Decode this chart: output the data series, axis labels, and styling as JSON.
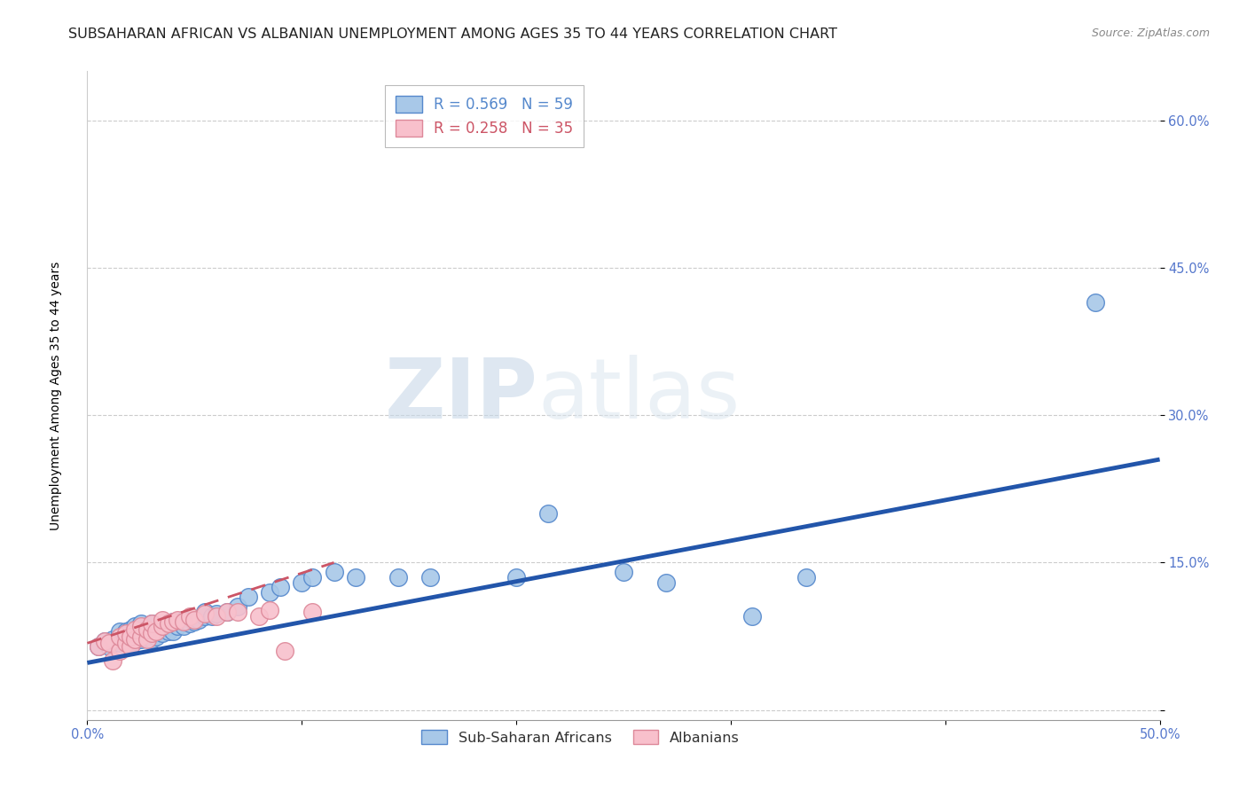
{
  "title": "SUBSAHARAN AFRICAN VS ALBANIAN UNEMPLOYMENT AMONG AGES 35 TO 44 YEARS CORRELATION CHART",
  "source": "Source: ZipAtlas.com",
  "ylabel": "Unemployment Among Ages 35 to 44 years",
  "xlim": [
    0.0,
    0.5
  ],
  "ylim": [
    -0.01,
    0.65
  ],
  "yticks": [
    0.0,
    0.15,
    0.3,
    0.45,
    0.6
  ],
  "ytick_labels": [
    "",
    "15.0%",
    "30.0%",
    "45.0%",
    "60.0%"
  ],
  "xtick_labels": [
    "0.0%",
    "",
    "",
    "",
    "",
    "50.0%"
  ],
  "xticks": [
    0.0,
    0.1,
    0.2,
    0.3,
    0.4,
    0.5
  ],
  "blue_color": "#a8c8e8",
  "blue_edge_color": "#5588cc",
  "blue_line_color": "#2255aa",
  "pink_color": "#f8c0cc",
  "pink_edge_color": "#dd8899",
  "pink_line_color": "#cc5566",
  "tick_color": "#5577cc",
  "watermark_zip": "ZIP",
  "watermark_atlas": "atlas",
  "title_fontsize": 11.5,
  "axis_label_fontsize": 10,
  "tick_label_fontsize": 10.5,
  "blue_scatter_x": [
    0.005,
    0.008,
    0.01,
    0.012,
    0.015,
    0.015,
    0.015,
    0.018,
    0.018,
    0.018,
    0.02,
    0.02,
    0.02,
    0.022,
    0.022,
    0.022,
    0.025,
    0.025,
    0.025,
    0.028,
    0.028,
    0.03,
    0.03,
    0.03,
    0.032,
    0.035,
    0.035,
    0.038,
    0.038,
    0.04,
    0.04,
    0.042,
    0.045,
    0.045,
    0.048,
    0.05,
    0.052,
    0.055,
    0.055,
    0.058,
    0.06,
    0.065,
    0.07,
    0.075,
    0.085,
    0.09,
    0.1,
    0.105,
    0.115,
    0.125,
    0.145,
    0.16,
    0.2,
    0.215,
    0.25,
    0.27,
    0.31,
    0.335,
    0.47
  ],
  "blue_scatter_y": [
    0.065,
    0.07,
    0.065,
    0.072,
    0.068,
    0.075,
    0.08,
    0.07,
    0.075,
    0.08,
    0.068,
    0.075,
    0.082,
    0.07,
    0.078,
    0.085,
    0.072,
    0.08,
    0.088,
    0.075,
    0.082,
    0.072,
    0.08,
    0.088,
    0.075,
    0.078,
    0.085,
    0.08,
    0.088,
    0.08,
    0.09,
    0.085,
    0.085,
    0.092,
    0.088,
    0.09,
    0.092,
    0.095,
    0.1,
    0.095,
    0.098,
    0.1,
    0.105,
    0.115,
    0.12,
    0.125,
    0.13,
    0.135,
    0.14,
    0.135,
    0.135,
    0.135,
    0.135,
    0.2,
    0.14,
    0.13,
    0.095,
    0.135,
    0.415
  ],
  "pink_scatter_x": [
    0.005,
    0.008,
    0.01,
    0.012,
    0.015,
    0.015,
    0.018,
    0.018,
    0.02,
    0.02,
    0.022,
    0.022,
    0.025,
    0.025,
    0.028,
    0.028,
    0.03,
    0.03,
    0.032,
    0.035,
    0.035,
    0.038,
    0.04,
    0.042,
    0.045,
    0.048,
    0.05,
    0.055,
    0.06,
    0.065,
    0.07,
    0.08,
    0.085,
    0.092,
    0.105
  ],
  "pink_scatter_y": [
    0.065,
    0.07,
    0.068,
    0.05,
    0.06,
    0.075,
    0.068,
    0.078,
    0.065,
    0.075,
    0.072,
    0.082,
    0.075,
    0.085,
    0.072,
    0.082,
    0.078,
    0.088,
    0.08,
    0.085,
    0.092,
    0.088,
    0.09,
    0.092,
    0.09,
    0.095,
    0.092,
    0.098,
    0.095,
    0.1,
    0.1,
    0.095,
    0.102,
    0.06,
    0.1
  ],
  "blue_trendline_x": [
    0.0,
    0.5
  ],
  "blue_trendline_y": [
    0.048,
    0.255
  ],
  "pink_trendline_x": [
    0.0,
    0.115
  ],
  "pink_trendline_y": [
    0.068,
    0.15
  ],
  "legend_items": [
    {
      "label_r": "R = 0.569",
      "label_n": "N = 59",
      "color": "#5588cc"
    },
    {
      "label_r": "R = 0.258",
      "label_n": "N = 35",
      "color": "#cc5566"
    }
  ]
}
